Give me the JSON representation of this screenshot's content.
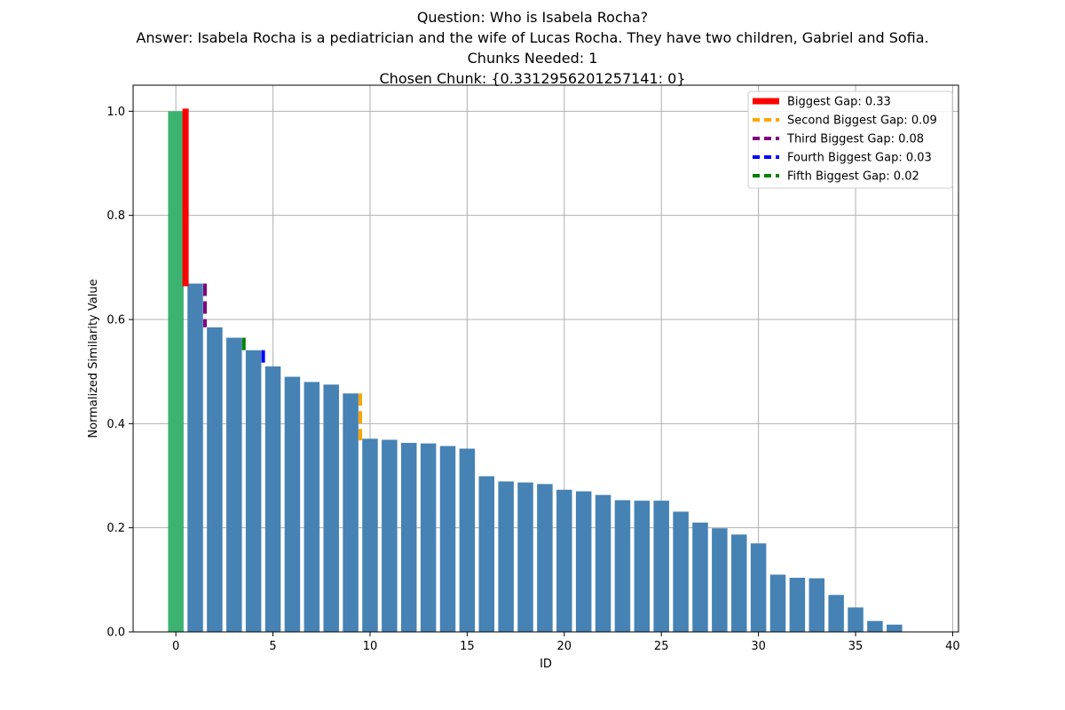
{
  "title_lines": [
    "Question: Who is Isabela Rocha?",
    "Answer: Isabela Rocha is a pediatrician and the wife of Lucas Rocha. They have two children, Gabriel and Sofia.",
    "Chunks Needed: 1",
    "Chosen Chunk: {0.3312956201257141: 0}"
  ],
  "chart_data": {
    "type": "bar",
    "xlabel": "ID",
    "ylabel": "Normalized Similarity Value",
    "xlim": [
      -2.2,
      40.3
    ],
    "ylim": [
      0,
      1.05
    ],
    "xticks": [
      0,
      5,
      10,
      15,
      20,
      25,
      30,
      35,
      40
    ],
    "yticks": [
      0.0,
      0.2,
      0.4,
      0.6,
      0.8,
      1.0
    ],
    "xtick_labels": [
      "0",
      "5",
      "10",
      "15",
      "20",
      "25",
      "30",
      "35",
      "40"
    ],
    "ytick_labels": [
      "0.0",
      "0.2",
      "0.4",
      "0.6",
      "0.8",
      "1.0"
    ],
    "grid": true,
    "bar_color": "#4682b4",
    "highlight_color": "#3cb371",
    "highlight_ids": [
      0
    ],
    "ids": [
      0,
      1,
      2,
      3,
      4,
      5,
      6,
      7,
      8,
      9,
      10,
      11,
      12,
      13,
      14,
      15,
      16,
      17,
      18,
      19,
      20,
      21,
      22,
      23,
      24,
      25,
      26,
      27,
      28,
      29,
      30,
      31,
      32,
      33,
      34,
      35,
      36,
      37
    ],
    "values": [
      1.0,
      0.669,
      0.585,
      0.565,
      0.541,
      0.51,
      0.49,
      0.48,
      0.475,
      0.458,
      0.371,
      0.369,
      0.363,
      0.362,
      0.357,
      0.352,
      0.299,
      0.289,
      0.287,
      0.284,
      0.273,
      0.27,
      0.263,
      0.253,
      0.252,
      0.252,
      0.231,
      0.21,
      0.199,
      0.187,
      0.17,
      0.11,
      0.104,
      0.103,
      0.071,
      0.047,
      0.021,
      0.014
    ],
    "gaps": [
      {
        "name": "Biggest Gap: 0.33",
        "x": 0.5,
        "y_top": 1.005,
        "y_bottom": 0.664,
        "color": "#ff0000",
        "style": "solid"
      },
      {
        "name": "Second Biggest Gap: 0.09",
        "x": 9.5,
        "y_top": 0.458,
        "y_bottom": 0.368,
        "color": "#ffa500",
        "style": "dashed"
      },
      {
        "name": "Third Biggest Gap: 0.08",
        "x": 1.5,
        "y_top": 0.669,
        "y_bottom": 0.585,
        "color": "#800080",
        "style": "dashed"
      },
      {
        "name": "Fourth Biggest Gap: 0.03",
        "x": 4.5,
        "y_top": 0.541,
        "y_bottom": 0.51,
        "color": "#0000ff",
        "style": "dashed"
      },
      {
        "name": "Fifth Biggest Gap: 0.02",
        "x": 3.5,
        "y_top": 0.565,
        "y_bottom": 0.541,
        "color": "#008000",
        "style": "dashed"
      }
    ],
    "legend_position": "top-right"
  }
}
